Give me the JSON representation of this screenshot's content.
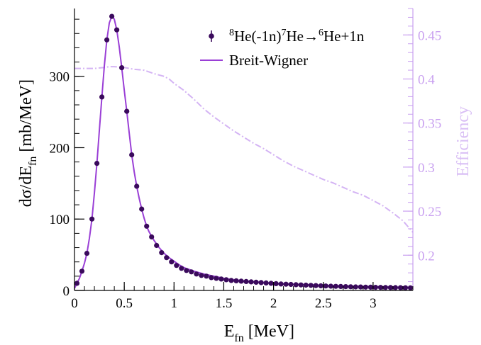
{
  "chart_data": {
    "type": "line",
    "xlabel": {
      "main": "E",
      "sub": "fn",
      "rest": " [MeV]"
    },
    "ylabel": {
      "main": "dσ/dE",
      "sub": "fn",
      "rest": " [mb/MeV]"
    },
    "y2label": "Efficiency",
    "xlim": [
      0,
      3.4
    ],
    "ylim": [
      0,
      395
    ],
    "y2lim": [
      0.16,
      0.48
    ],
    "xticks": [
      0,
      0.5,
      1,
      1.5,
      2,
      2.5,
      3
    ],
    "xtick_labels": [
      "0",
      "0.5",
      "1",
      "1.5",
      "2",
      "2.5",
      "3"
    ],
    "yticks": [
      0,
      100,
      200,
      300
    ],
    "ytick_labels": [
      "0",
      "100",
      "200",
      "300"
    ],
    "y2ticks": [
      0.2,
      0.25,
      0.3,
      0.35,
      0.4,
      0.45
    ],
    "y2tick_labels": [
      "0.2",
      "0.25",
      "0.3",
      "0.35",
      "0.4",
      "0.45"
    ],
    "grid": false,
    "legend_position": "top-right",
    "legend": [
      {
        "id": "data",
        "parts": [
          {
            "t": "8",
            "sup": true
          },
          {
            "t": "He(-1n)"
          },
          {
            "t": "7",
            "sup": true
          },
          {
            "t": "He→"
          },
          {
            "t": "6",
            "sup": true
          },
          {
            "t": "He+1n"
          }
        ]
      },
      {
        "id": "fit",
        "parts": [
          {
            "t": "Breit-Wigner"
          }
        ]
      }
    ],
    "series": [
      {
        "id": "data",
        "kind": "points",
        "color": "#3a0a5c",
        "axis": "left",
        "x": [
          0.025,
          0.075,
          0.125,
          0.175,
          0.225,
          0.275,
          0.325,
          0.375,
          0.425,
          0.475,
          0.525,
          0.575,
          0.625,
          0.675,
          0.725,
          0.775,
          0.825,
          0.875,
          0.925,
          0.975,
          1.025,
          1.075,
          1.125,
          1.175,
          1.225,
          1.275,
          1.325,
          1.375,
          1.425,
          1.475,
          1.525,
          1.575,
          1.625,
          1.675,
          1.725,
          1.775,
          1.825,
          1.875,
          1.925,
          1.975,
          2.025,
          2.075,
          2.125,
          2.175,
          2.225,
          2.275,
          2.325,
          2.375,
          2.425,
          2.475,
          2.525,
          2.575,
          2.625,
          2.675,
          2.725,
          2.775,
          2.825,
          2.875,
          2.925,
          2.975,
          3.025,
          3.075,
          3.125,
          3.175,
          3.225,
          3.275,
          3.325,
          3.375
        ],
        "y": [
          10,
          27,
          52,
          100,
          178,
          271,
          351,
          384,
          365,
          312,
          251,
          190,
          146,
          114,
          90,
          75,
          63,
          53,
          46,
          40,
          35,
          31,
          28,
          26,
          23,
          21,
          20,
          18,
          17,
          16,
          15,
          14,
          13.5,
          13,
          12.5,
          12,
          11.5,
          11,
          10.5,
          10,
          9.5,
          9,
          8.7,
          8.4,
          8,
          7.7,
          7.4,
          7.1,
          6.8,
          6.5,
          6.3,
          6,
          5.8,
          5.6,
          5.4,
          5.2,
          5,
          4.9,
          4.7,
          4.6,
          4.4,
          4.3,
          4.2,
          4.1,
          4,
          3.9,
          3.8,
          3.7
        ]
      },
      {
        "id": "fit",
        "kind": "curve",
        "color": "#9a3fd6",
        "axis": "left",
        "x": [
          0,
          0.025,
          0.05,
          0.075,
          0.1,
          0.125,
          0.15,
          0.175,
          0.2,
          0.225,
          0.25,
          0.275,
          0.3,
          0.325,
          0.35,
          0.375,
          0.4,
          0.425,
          0.45,
          0.475,
          0.5,
          0.525,
          0.55,
          0.575,
          0.6,
          0.625,
          0.65,
          0.675,
          0.7,
          0.725,
          0.75,
          0.8,
          0.85,
          0.9,
          0.95,
          1,
          1.05,
          1.1,
          1.2,
          1.3,
          1.4,
          1.5,
          1.6,
          1.7,
          1.8,
          1.9,
          2,
          2.2,
          2.4,
          2.6,
          2.8,
          3,
          3.2,
          3.4
        ],
        "y": [
          3,
          10,
          17,
          27,
          38,
          52,
          73,
          100,
          137,
          178,
          225,
          271,
          315,
          351,
          375,
          384,
          380,
          365,
          341,
          312,
          281,
          251,
          220,
          190,
          166,
          146,
          129,
          114,
          101,
          90,
          82,
          70,
          60,
          52,
          46,
          41,
          36,
          32,
          27,
          23,
          20,
          17,
          15,
          13.5,
          12.3,
          11.2,
          10.2,
          8.7,
          7.6,
          6.7,
          5.9,
          5.2,
          4.6,
          4.1
        ]
      },
      {
        "id": "efficiency",
        "kind": "dashdot",
        "color": "#d4b4f4",
        "axis": "right",
        "x": [
          0,
          0.1,
          0.2,
          0.3,
          0.35,
          0.4,
          0.5,
          0.6,
          0.7,
          0.8,
          0.9,
          0.95,
          1,
          1.1,
          1.2,
          1.3,
          1.4,
          1.5,
          1.6,
          1.7,
          1.8,
          1.9,
          2,
          2.1,
          2.2,
          2.3,
          2.4,
          2.5,
          2.6,
          2.7,
          2.8,
          2.9,
          3,
          3.1,
          3.2,
          3.3,
          3.4
        ],
        "y": [
          0.412,
          0.412,
          0.412,
          0.413,
          0.414,
          0.414,
          0.413,
          0.411,
          0.41,
          0.406,
          0.403,
          0.4,
          0.395,
          0.387,
          0.377,
          0.366,
          0.357,
          0.349,
          0.341,
          0.334,
          0.327,
          0.321,
          0.314,
          0.307,
          0.301,
          0.296,
          0.291,
          0.286,
          0.282,
          0.277,
          0.272,
          0.268,
          0.262,
          0.256,
          0.248,
          0.239,
          0.226
        ]
      }
    ]
  }
}
